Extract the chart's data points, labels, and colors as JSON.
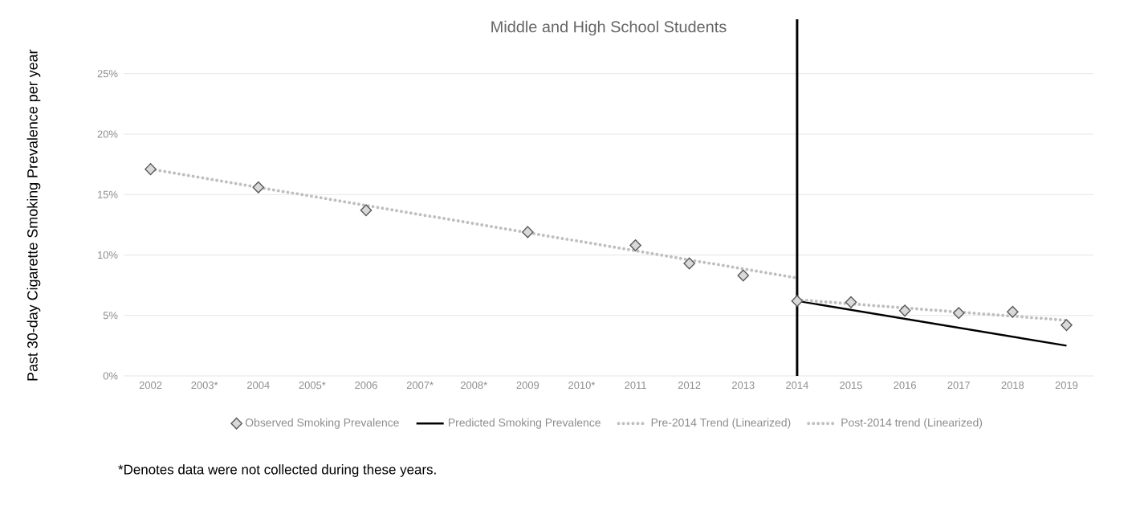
{
  "chart_data": {
    "type": "line",
    "title": "Middle and High School Students",
    "ylabel": "Past 30-day Cigarette Smoking Prevalence per year",
    "categories": [
      "2002",
      "2003*",
      "2004",
      "2005*",
      "2006",
      "2007*",
      "2008*",
      "2009",
      "2010*",
      "2011",
      "2012",
      "2013",
      "2014",
      "2015",
      "2016",
      "2017",
      "2018",
      "2019"
    ],
    "series": [
      {
        "name": "Observed Smoking Prevalence",
        "type": "scatter",
        "marker": "diamond",
        "color": "#d9d9d9",
        "values": [
          17.1,
          null,
          15.6,
          null,
          13.7,
          null,
          null,
          11.9,
          null,
          10.8,
          9.3,
          8.3,
          6.2,
          6.1,
          5.4,
          5.2,
          5.3,
          4.2
        ]
      },
      {
        "name": "Predicted Smoking Prevalence",
        "line_style": "solid",
        "color": "#000000",
        "values": [
          null,
          null,
          null,
          null,
          null,
          null,
          null,
          null,
          null,
          null,
          null,
          null,
          6.2,
          null,
          null,
          null,
          null,
          2.5
        ]
      },
      {
        "name": "Pre-2014 Trend (Linearized)",
        "line_style": "dotted",
        "color": "#bfbfbf",
        "values": [
          17.1,
          null,
          null,
          null,
          null,
          null,
          null,
          null,
          null,
          null,
          null,
          null,
          8.1,
          null,
          null,
          null,
          null,
          null
        ]
      },
      {
        "name": "Post-2014 trend (Linearized)",
        "line_style": "dotted",
        "color": "#bfbfbf",
        "values": [
          null,
          null,
          null,
          null,
          null,
          null,
          null,
          null,
          null,
          null,
          null,
          null,
          6.3,
          null,
          null,
          null,
          null,
          4.6
        ]
      }
    ],
    "ylim": [
      0,
      29.5
    ],
    "yticks": [
      {
        "value": 0,
        "label": "0%"
      },
      {
        "value": 5,
        "label": "5%"
      },
      {
        "value": 10,
        "label": "10%"
      },
      {
        "value": 15,
        "label": "15%"
      },
      {
        "value": 20,
        "label": "20%"
      },
      {
        "value": 25,
        "label": "25%"
      }
    ],
    "grid": "y",
    "legend": "bottom",
    "ref_lines": [
      {
        "axis": "x",
        "value": "2014",
        "color": "#000000"
      }
    ],
    "annotations": [
      "*Denotes data were not collected during these years."
    ]
  }
}
